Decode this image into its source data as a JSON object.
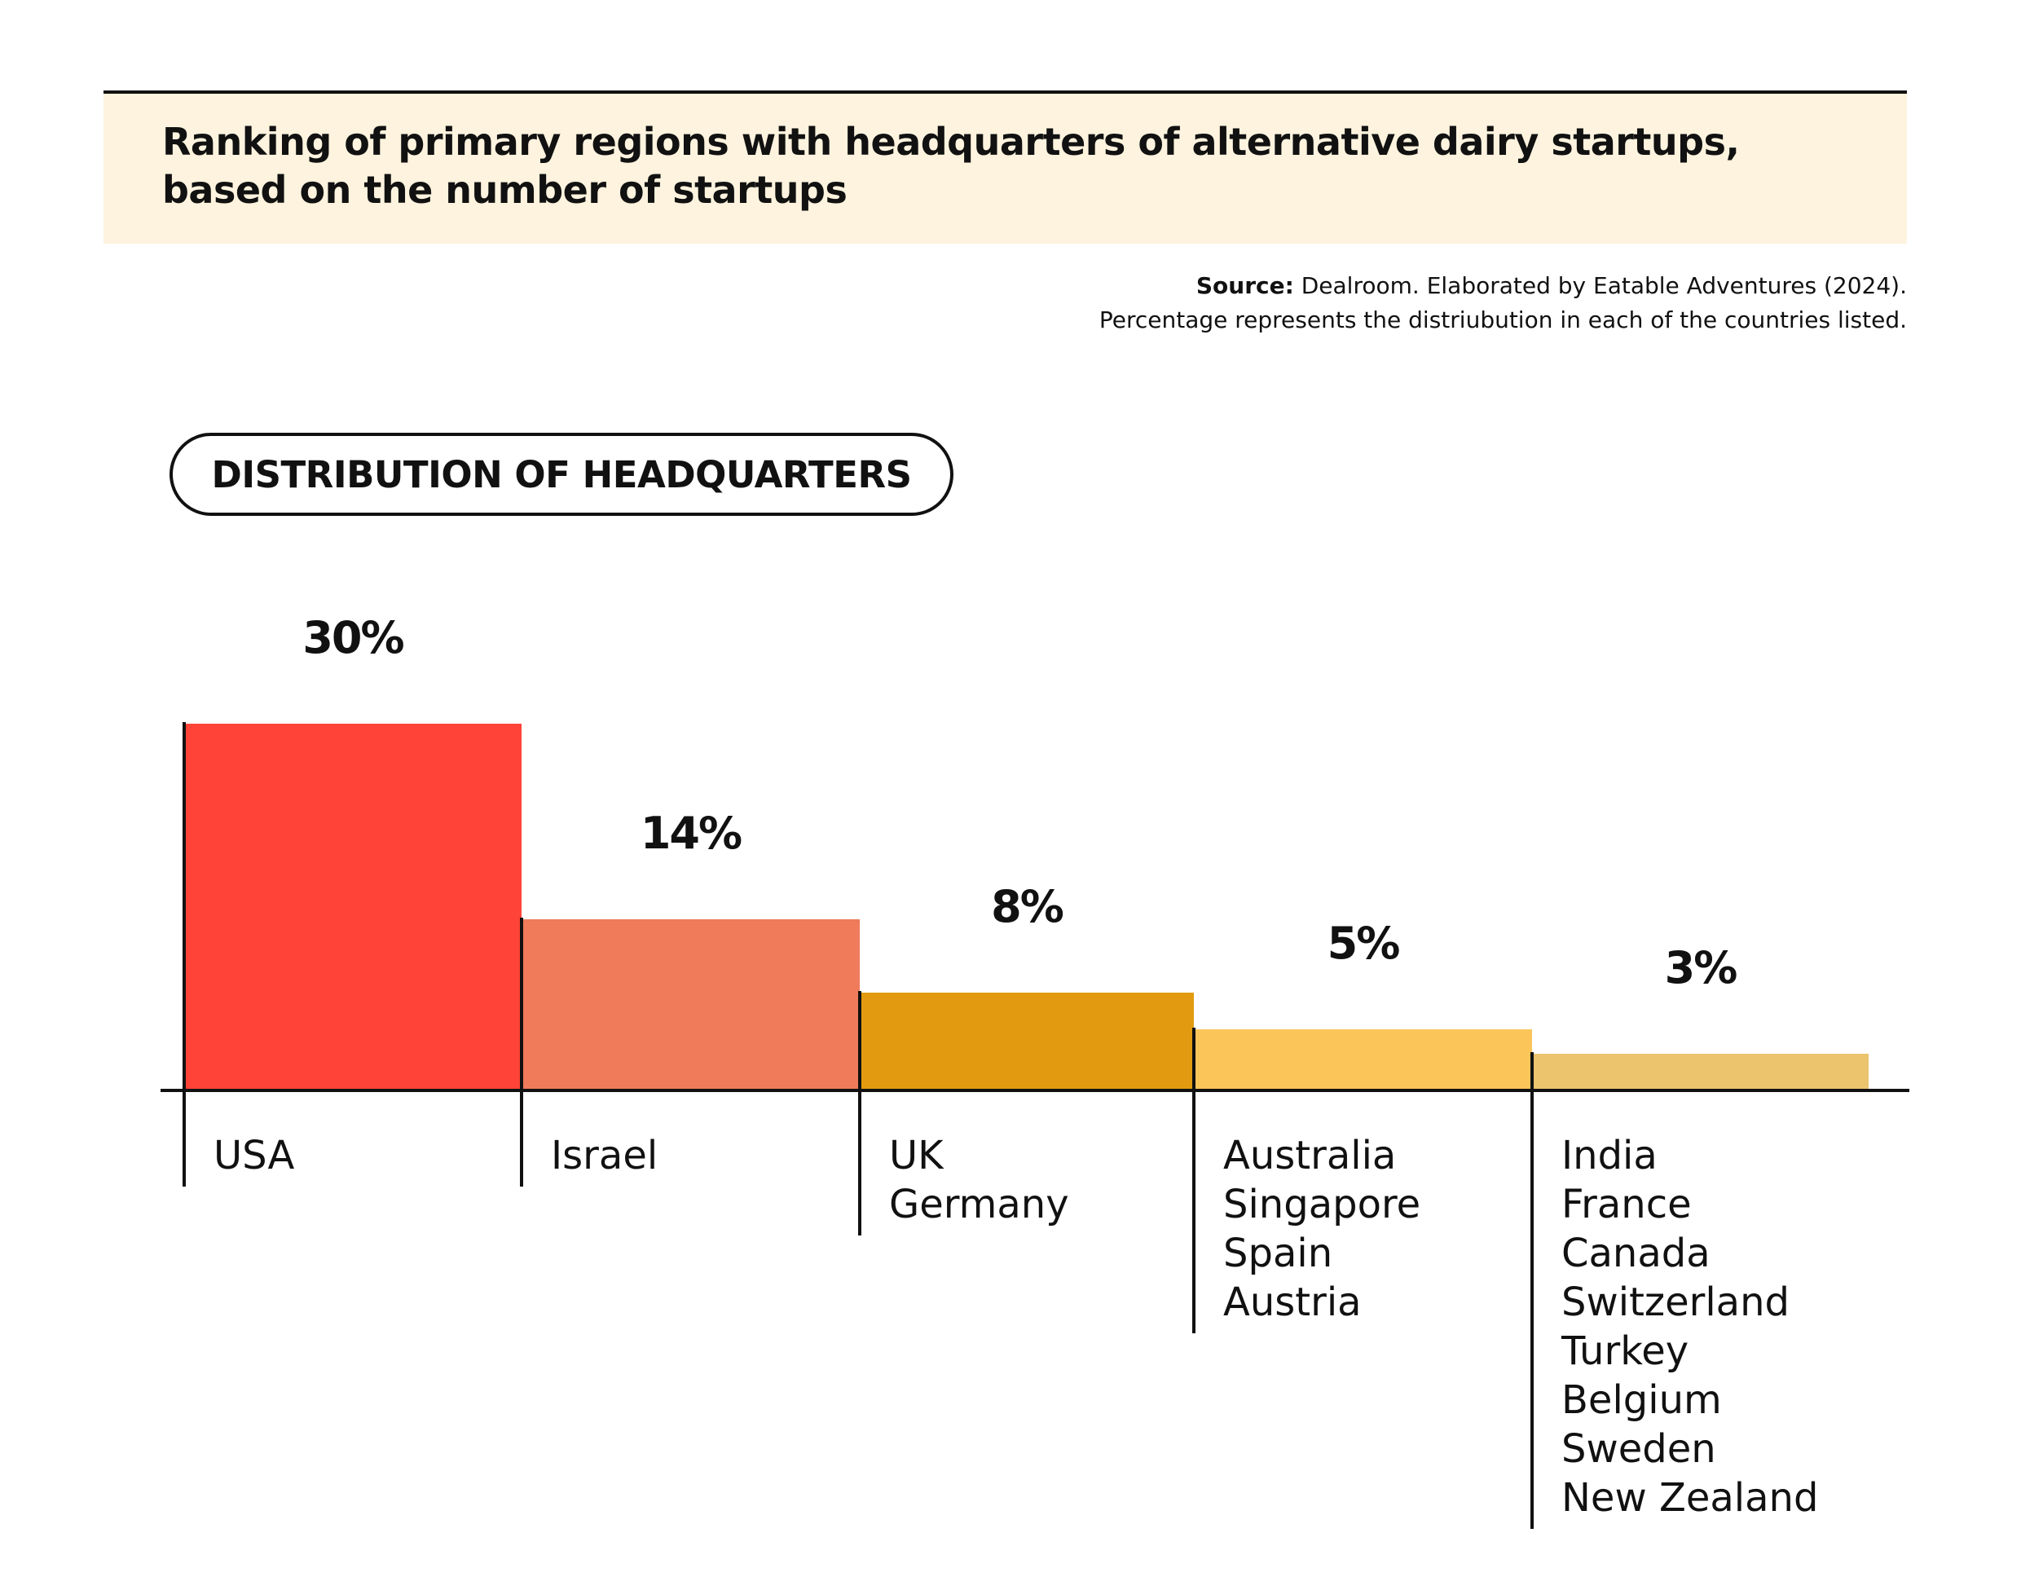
{
  "title": "Ranking of primary regions with headquarters of alternative dairy startups, based on the number of startups",
  "source": {
    "label": "Source:",
    "text": " Dealroom. Elaborated by Eatable Adventures (2024).",
    "note": "Percentage represents the distriubution in each of the countries listed."
  },
  "section_label": "DISTRIBUTION OF HEADQUARTERS",
  "chart_data": {
    "type": "bar",
    "unit": "%",
    "ylim": [
      0,
      30
    ],
    "grid": false,
    "categories": [
      "USA",
      "Israel",
      "UK / Germany",
      "Australia / Singapore / Spain / Austria",
      "India / France / Canada / Switzerland / Turkey / Belgium / Sweden / New Zealand"
    ],
    "values": [
      30,
      14,
      8,
      5,
      3
    ],
    "value_labels": [
      "30%",
      "14%",
      "8%",
      "5%",
      "3%"
    ],
    "groups": [
      [
        "USA"
      ],
      [
        "Israel"
      ],
      [
        "UK",
        "Germany"
      ],
      [
        "Australia",
        "Singapore",
        "Spain",
        "Austria"
      ],
      [
        "India",
        "France",
        "Canada",
        "Switzerland",
        "Turkey",
        "Belgium",
        "Sweden",
        "New Zealand"
      ]
    ],
    "colors": [
      "#ff4338",
      "#ef7b5b",
      "#e29b10",
      "#fbc55a",
      "#ecc46e"
    ]
  }
}
